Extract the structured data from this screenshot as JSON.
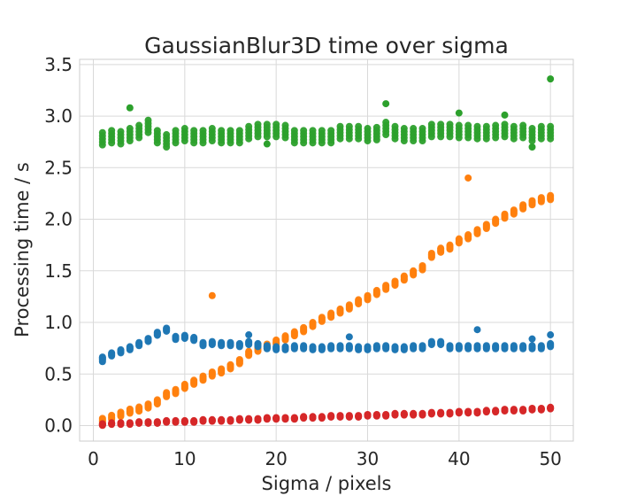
{
  "chart_data": {
    "type": "scatter",
    "title": "GaussianBlur3D time over sigma",
    "xlabel": "Sigma / pixels",
    "ylabel": "Processing time / s",
    "xlim": [
      -1.5,
      52.5
    ],
    "ylim": [
      -0.15,
      3.55
    ],
    "xticks": [
      0,
      10,
      20,
      30,
      40,
      50
    ],
    "xtick_labels": [
      "0",
      "10",
      "20",
      "30",
      "40",
      "50"
    ],
    "yticks": [
      0.0,
      0.5,
      1.0,
      1.5,
      2.0,
      2.5,
      3.0,
      3.5
    ],
    "ytick_labels": [
      "0.0",
      "0.5",
      "1.0",
      "1.5",
      "2.0",
      "2.5",
      "3.0",
      "3.5"
    ],
    "grid": true,
    "legend": "none",
    "x": [
      1,
      2,
      3,
      4,
      5,
      6,
      7,
      8,
      9,
      10,
      11,
      12,
      13,
      14,
      15,
      16,
      17,
      18,
      19,
      20,
      21,
      22,
      23,
      24,
      25,
      26,
      27,
      28,
      29,
      30,
      31,
      32,
      33,
      34,
      35,
      36,
      37,
      38,
      39,
      40,
      41,
      42,
      43,
      44,
      45,
      46,
      47,
      48,
      49,
      50
    ],
    "series": [
      {
        "color": "#2ca02c",
        "values": [
          2.78,
          2.8,
          2.79,
          2.82,
          2.85,
          2.9,
          2.8,
          2.76,
          2.8,
          2.82,
          2.8,
          2.8,
          2.82,
          2.8,
          2.8,
          2.8,
          2.84,
          2.86,
          2.86,
          2.86,
          2.85,
          2.8,
          2.8,
          2.8,
          2.8,
          2.8,
          2.84,
          2.84,
          2.84,
          2.82,
          2.83,
          2.88,
          2.84,
          2.82,
          2.82,
          2.82,
          2.86,
          2.86,
          2.86,
          2.85,
          2.85,
          2.84,
          2.84,
          2.85,
          2.86,
          2.84,
          2.85,
          2.82,
          2.84,
          2.84
        ],
        "outliers": [
          [
            4,
            3.08
          ],
          [
            32,
            3.12
          ],
          [
            40,
            3.03
          ],
          [
            45,
            3.01
          ],
          [
            50,
            3.36
          ],
          [
            48,
            2.7
          ],
          [
            19,
            2.73
          ]
        ]
      },
      {
        "color": "#ff7f0e",
        "values": [
          0.05,
          0.08,
          0.11,
          0.14,
          0.16,
          0.19,
          0.23,
          0.3,
          0.33,
          0.38,
          0.42,
          0.46,
          0.5,
          0.53,
          0.57,
          0.62,
          0.7,
          0.74,
          0.77,
          0.81,
          0.85,
          0.89,
          0.93,
          0.98,
          1.03,
          1.07,
          1.11,
          1.15,
          1.2,
          1.24,
          1.29,
          1.34,
          1.38,
          1.43,
          1.48,
          1.53,
          1.65,
          1.7,
          1.73,
          1.79,
          1.83,
          1.88,
          1.93,
          1.98,
          2.03,
          2.07,
          2.12,
          2.16,
          2.19,
          2.21
        ],
        "outliers": [
          [
            13,
            1.26
          ],
          [
            41,
            2.4
          ]
        ]
      },
      {
        "color": "#1f77b4",
        "values": [
          0.65,
          0.69,
          0.72,
          0.75,
          0.79,
          0.83,
          0.89,
          0.93,
          0.85,
          0.86,
          0.84,
          0.79,
          0.8,
          0.79,
          0.79,
          0.78,
          0.8,
          0.78,
          0.76,
          0.75,
          0.75,
          0.76,
          0.76,
          0.75,
          0.75,
          0.76,
          0.76,
          0.76,
          0.75,
          0.75,
          0.76,
          0.76,
          0.75,
          0.75,
          0.76,
          0.76,
          0.8,
          0.8,
          0.76,
          0.76,
          0.76,
          0.76,
          0.76,
          0.76,
          0.76,
          0.76,
          0.76,
          0.76,
          0.76,
          0.78
        ],
        "outliers": [
          [
            42,
            0.93
          ],
          [
            48,
            0.84
          ],
          [
            50,
            0.88
          ],
          [
            28,
            0.86
          ],
          [
            17,
            0.88
          ],
          [
            1,
            0.62
          ]
        ]
      },
      {
        "color": "#d62728",
        "values": [
          0.01,
          0.02,
          0.02,
          0.02,
          0.03,
          0.03,
          0.03,
          0.04,
          0.04,
          0.04,
          0.04,
          0.05,
          0.05,
          0.05,
          0.05,
          0.06,
          0.06,
          0.06,
          0.07,
          0.07,
          0.07,
          0.07,
          0.08,
          0.08,
          0.08,
          0.09,
          0.09,
          0.09,
          0.09,
          0.1,
          0.1,
          0.1,
          0.11,
          0.11,
          0.11,
          0.11,
          0.12,
          0.12,
          0.12,
          0.13,
          0.13,
          0.13,
          0.14,
          0.14,
          0.15,
          0.15,
          0.15,
          0.16,
          0.16,
          0.17
        ],
        "outliers": []
      }
    ]
  }
}
